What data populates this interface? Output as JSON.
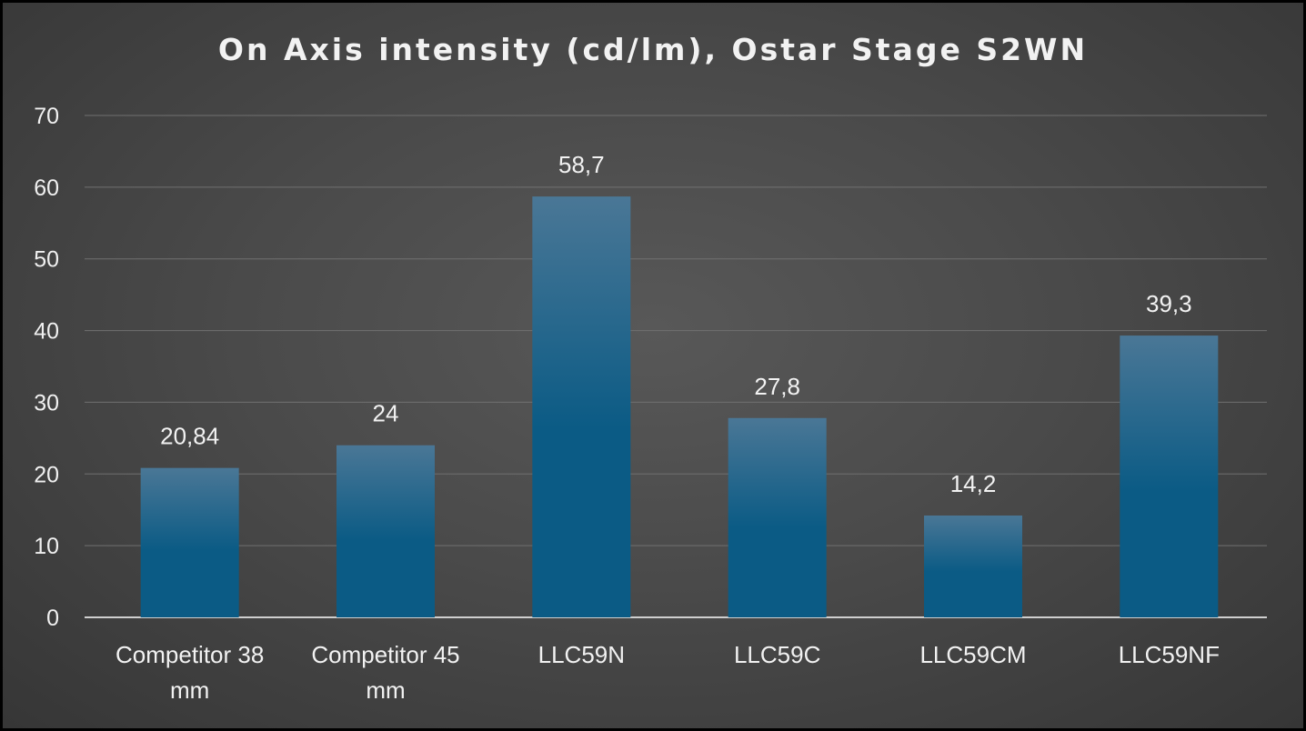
{
  "chart_data": {
    "type": "bar",
    "title": "On Axis intensity (cd/lm), Ostar Stage S2WN",
    "xlabel": "",
    "ylabel": "",
    "categories": [
      [
        "Competitor 38",
        "mm"
      ],
      [
        "Competitor 45",
        "mm"
      ],
      [
        "LLC59N"
      ],
      [
        "LLC59C"
      ],
      [
        "LLC59CM"
      ],
      [
        "LLC59NF"
      ]
    ],
    "values": [
      20.84,
      24,
      58.7,
      27.8,
      14.2,
      39.3
    ],
    "data_labels": [
      "20,84",
      "24",
      "58,7",
      "27,8",
      "14,2",
      "39,3"
    ],
    "yticks": [
      "0",
      "10",
      "20",
      "30",
      "40",
      "50",
      "60",
      "70"
    ],
    "ylim": [
      0,
      70
    ],
    "grid": true,
    "legend": "none",
    "colors": {
      "bar_top": "#4a7796",
      "bar_bottom": "#0b5b85",
      "grid": "#707070",
      "axis": "#cfcfcf"
    }
  }
}
